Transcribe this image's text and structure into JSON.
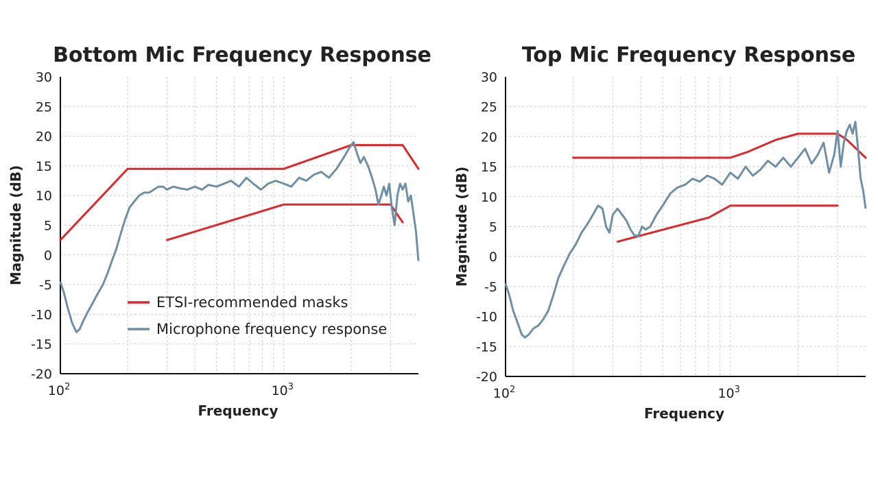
{
  "chart_data": [
    {
      "type": "line",
      "title": "Bottom Mic Frequency Response",
      "xlabel": "Frequency",
      "ylabel": "Magnitude (dB)",
      "xscale": "log",
      "xlim": [
        100,
        4000
      ],
      "ylim": [
        -20,
        30
      ],
      "yticks": [
        30,
        25,
        20,
        15,
        10,
        5,
        0,
        -5,
        -10,
        -15,
        -20
      ],
      "xticks": [
        {
          "value": 100,
          "base": "10",
          "exp": "2"
        },
        {
          "value": 1000,
          "base": "10",
          "exp": "3"
        }
      ],
      "grid": true,
      "legend": {
        "position": "lower-center",
        "entries": [
          {
            "label": "ETSI-recommended masks",
            "color": "#e0262a"
          },
          {
            "label": "Microphone frequency response",
            "color": "#6f8fa5"
          }
        ]
      },
      "series": [
        {
          "name": "ETSI upper mask",
          "color": "#e0262a",
          "x": [
            100,
            200,
            1000,
            2000,
            3400,
            4000
          ],
          "y": [
            2.5,
            14.5,
            14.5,
            18.5,
            18.5,
            14.5
          ]
        },
        {
          "name": "ETSI lower mask",
          "color": "#e0262a",
          "x": [
            300,
            1000,
            3000,
            3400
          ],
          "y": [
            2.5,
            8.5,
            8.5,
            5.5
          ]
        },
        {
          "name": "Microphone frequency response",
          "color": "#6f8fa5",
          "x": [
            100,
            104,
            108,
            113,
            118,
            122,
            127,
            133,
            140,
            147,
            155,
            163,
            170,
            178,
            186,
            195,
            204,
            214,
            225,
            237,
            250,
            262,
            275,
            288,
            300,
            320,
            345,
            370,
            400,
            430,
            460,
            500,
            540,
            580,
            630,
            680,
            730,
            790,
            850,
            920,
            1000,
            1080,
            1170,
            1260,
            1360,
            1470,
            1590,
            1720,
            1860,
            1960,
            2050,
            2130,
            2200,
            2280,
            2380,
            2480,
            2570,
            2650,
            2730,
            2800,
            2880,
            2960,
            3040,
            3130,
            3220,
            3310,
            3400,
            3500,
            3600,
            3700,
            3800,
            3900,
            4000
          ],
          "y": [
            -4.5,
            -6.5,
            -9,
            -11.5,
            -13,
            -12.5,
            -11,
            -9.5,
            -8,
            -6.5,
            -5,
            -3,
            -1,
            1,
            3.5,
            6,
            8,
            9,
            10,
            10.5,
            10.5,
            11,
            11.5,
            11.5,
            11,
            11.5,
            11.2,
            11,
            11.5,
            11,
            11.8,
            11.5,
            12,
            12.5,
            11.5,
            13,
            12,
            11,
            12,
            12.5,
            12,
            11.5,
            13,
            12.5,
            13.5,
            14,
            13,
            14.5,
            16.5,
            18,
            19,
            17,
            15.5,
            16.5,
            15,
            13,
            11,
            8.5,
            10,
            11.5,
            10,
            12,
            8,
            5,
            10,
            12,
            11,
            12,
            9,
            10,
            7,
            4,
            -1
          ]
        }
      ]
    },
    {
      "type": "line",
      "title": "Top Mic Frequency Response",
      "xlabel": "Frequency",
      "ylabel": "Magnitude (dB)",
      "xscale": "log",
      "xlim": [
        100,
        4000
      ],
      "ylim": [
        -20,
        30
      ],
      "yticks": [
        30,
        25,
        20,
        15,
        10,
        5,
        0,
        -5,
        -10,
        -15,
        -20
      ],
      "xticks": [
        {
          "value": 100,
          "base": "10",
          "exp": "2"
        },
        {
          "value": 1000,
          "base": "10",
          "exp": "3"
        }
      ],
      "grid": true,
      "series": [
        {
          "name": "ETSI upper mask",
          "color": "#e0262a",
          "x": [
            200,
            1000,
            1200,
            1600,
            2000,
            3000,
            3300,
            4000
          ],
          "y": [
            16.5,
            16.5,
            17.5,
            19.5,
            20.5,
            20.5,
            19.5,
            16.5
          ]
        },
        {
          "name": "ETSI lower mask",
          "color": "#e0262a",
          "x": [
            315,
            800,
            1000,
            3000
          ],
          "y": [
            2.5,
            6.5,
            8.5,
            8.5
          ]
        },
        {
          "name": "Microphone frequency response",
          "color": "#6f8fa5",
          "x": [
            100,
            104,
            108,
            113,
            118,
            122,
            127,
            133,
            140,
            147,
            155,
            163,
            172,
            182,
            193,
            205,
            218,
            232,
            245,
            258,
            270,
            280,
            290,
            300,
            315,
            330,
            345,
            360,
            375,
            390,
            405,
            420,
            440,
            470,
            500,
            540,
            580,
            630,
            680,
            730,
            790,
            850,
            920,
            1000,
            1080,
            1170,
            1260,
            1360,
            1470,
            1590,
            1720,
            1860,
            2000,
            2150,
            2300,
            2450,
            2600,
            2750,
            2900,
            3000,
            3100,
            3200,
            3300,
            3400,
            3500,
            3600,
            3700,
            3800,
            3900,
            4000
          ],
          "y": [
            -4.5,
            -6.5,
            -9,
            -11,
            -13,
            -13.5,
            -13,
            -12,
            -11.5,
            -10.5,
            -9,
            -6.5,
            -3.5,
            -1.5,
            0.5,
            2,
            4,
            5.5,
            7,
            8.5,
            8,
            5,
            4,
            7,
            8,
            7,
            6,
            4.5,
            3.5,
            3.5,
            5,
            4.5,
            5,
            7,
            8.5,
            10.5,
            11.5,
            12,
            13,
            12.5,
            13.5,
            13,
            12,
            14,
            13,
            15,
            13.5,
            14.5,
            16,
            15,
            16.5,
            15,
            16.5,
            18,
            15.5,
            17,
            19,
            14,
            17,
            21,
            15,
            19,
            21,
            22,
            20.5,
            22.5,
            18,
            13,
            11,
            8
          ]
        }
      ]
    }
  ]
}
